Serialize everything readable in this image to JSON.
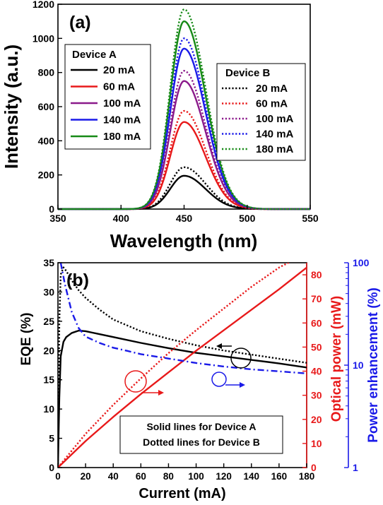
{
  "chart_data": [
    {
      "type": "line",
      "panel_label": "(a)",
      "xlabel": "Wavelength (nm)",
      "ylabel": "Intensity (a.u.)",
      "xlim": [
        350,
        550
      ],
      "ylim": [
        0,
        1200
      ],
      "xticks": [
        "350",
        "400",
        "450",
        "500",
        "550"
      ],
      "yticks": [
        "0",
        "200",
        "400",
        "600",
        "800",
        "1000",
        "1200"
      ],
      "legend_a_title": "Device A",
      "legend_b_title": "Device B",
      "line_styles": {
        "Device A": "solid",
        "Device B": "dotted"
      },
      "peak_wavelength_nm": 450,
      "series": [
        {
          "name": "20 mA",
          "device": "Device A",
          "color": "#000000",
          "peak": 195
        },
        {
          "name": "60 mA",
          "device": "Device A",
          "color": "#e8191a",
          "peak": 510
        },
        {
          "name": "100 mA",
          "device": "Device A",
          "color": "#8b1a8b",
          "peak": 750
        },
        {
          "name": "140 mA",
          "device": "Device A",
          "color": "#1a1ae8",
          "peak": 940
        },
        {
          "name": "180 mA",
          "device": "Device A",
          "color": "#178a17",
          "peak": 1100
        },
        {
          "name": "20 mA",
          "device": "Device B",
          "color": "#000000",
          "peak": 245
        },
        {
          "name": "60 mA",
          "device": "Device B",
          "color": "#e8191a",
          "peak": 575
        },
        {
          "name": "100 mA",
          "device": "Device B",
          "color": "#8b1a8b",
          "peak": 810
        },
        {
          "name": "140 mA",
          "device": "Device B",
          "color": "#1a1ae8",
          "peak": 1000
        },
        {
          "name": "180 mA",
          "device": "Device B",
          "color": "#178a17",
          "peak": 1170
        }
      ]
    },
    {
      "type": "line",
      "panel_label": "(b)",
      "xlabel": "Current (mA)",
      "xlim": [
        0,
        180
      ],
      "xticks": [
        "0",
        "20",
        "40",
        "60",
        "80",
        "100",
        "120",
        "140",
        "160",
        "180"
      ],
      "y_left": {
        "label": "EQE (%)",
        "lim": [
          0,
          35
        ],
        "color": "#000000",
        "ticks": [
          "0",
          "5",
          "10",
          "15",
          "20",
          "25",
          "30",
          "35"
        ]
      },
      "y_right1": {
        "label": "Optical power (mW)",
        "lim": [
          0,
          85
        ],
        "color": "#e8191a",
        "ticks": [
          "0",
          "10",
          "20",
          "30",
          "40",
          "50",
          "60",
          "70",
          "80"
        ]
      },
      "y_right2": {
        "label": "Power enhancement (%)",
        "lim": [
          1,
          100
        ],
        "scale": "log",
        "color": "#1a1ae8",
        "ticks": [
          "1",
          "10",
          "100"
        ]
      },
      "annotation_lines": [
        "Solid lines for Device A",
        "Dotted lines for Device B"
      ],
      "series": [
        {
          "name": "EQE Device A",
          "axis": "y_left",
          "style": "solid",
          "color": "#000000",
          "x": [
            0,
            1,
            2,
            4,
            6,
            10,
            15,
            20,
            30,
            40,
            60,
            80,
            100,
            120,
            140,
            160,
            180
          ],
          "y": [
            0,
            12,
            19,
            21.5,
            22.3,
            23,
            23.4,
            23.3,
            22.8,
            22.3,
            21.3,
            20.4,
            19.6,
            19,
            18.4,
            17.8,
            17.1
          ]
        },
        {
          "name": "EQE Device B",
          "axis": "y_left",
          "style": "dotted",
          "color": "#000000",
          "x": [
            0,
            1,
            2,
            4,
            6,
            10,
            15,
            20,
            30,
            40,
            60,
            80,
            100,
            120,
            140,
            160,
            180
          ],
          "y": [
            0,
            25,
            33,
            34.2,
            33.6,
            32,
            30.3,
            29,
            27,
            25.3,
            23.3,
            22,
            20.9,
            20,
            19.3,
            18.6,
            17.9
          ]
        },
        {
          "name": "Optical power Device A",
          "axis": "y_right1",
          "style": "solid",
          "color": "#e8191a",
          "x": [
            0,
            20,
            40,
            60,
            80,
            100,
            120,
            140,
            160,
            180
          ],
          "y": [
            0,
            11,
            21,
            30.5,
            39.5,
            48.5,
            57,
            65.5,
            74,
            83
          ]
        },
        {
          "name": "Optical power Device B",
          "axis": "y_right1",
          "style": "dotted",
          "color": "#e8191a",
          "x": [
            0,
            20,
            40,
            60,
            80,
            100,
            120,
            140,
            160,
            170
          ],
          "y": [
            0,
            14,
            26,
            37,
            47.5,
            57,
            66,
            75,
            83,
            86
          ]
        },
        {
          "name": "Power enhancement",
          "axis": "y_right2",
          "style": "dashdot",
          "color": "#1a1ae8",
          "x": [
            2,
            5,
            10,
            15,
            20,
            30,
            40,
            50,
            60,
            80,
            100,
            120,
            140,
            160,
            180
          ],
          "y": [
            100,
            62,
            33,
            23,
            19,
            16.5,
            14.8,
            13.8,
            12.8,
            11.6,
            10.5,
            9.7,
            9.1,
            8.7,
            8.3
          ]
        }
      ]
    }
  ]
}
